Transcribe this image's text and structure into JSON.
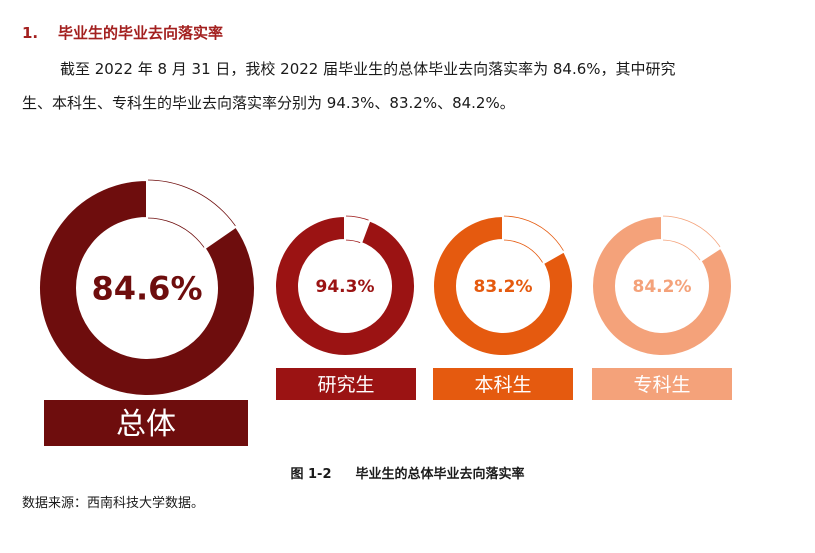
{
  "section": {
    "number": "1.",
    "title": "毕业生的毕业去向落实率"
  },
  "paragraph": {
    "line1": "截至 2022 年 8 月 31 日，我校 2022 届毕业生的总体毕业去向落实率为 84.6%，其中研究",
    "line2": "生、本科生、专科生的毕业去向落实率分别为 94.3%、83.2%、84.2%。"
  },
  "chart_data": {
    "type": "pie",
    "subtype": "donut",
    "unit": "%",
    "categories": [
      "总体",
      "研究生",
      "本科生",
      "专科生"
    ],
    "values": [
      84.6,
      94.3,
      83.2,
      84.2
    ],
    "labels": [
      "84.6%",
      "94.3%",
      "83.2%",
      "84.2%"
    ],
    "colors": [
      "#6e0d0d",
      "#9b1313",
      "#e55a0f",
      "#f4a27a"
    ]
  },
  "caption": {
    "figure": "图 1-2",
    "title": "毕业生的总体毕业去向落实率"
  },
  "source": "数据来源：西南科技大学数据。"
}
